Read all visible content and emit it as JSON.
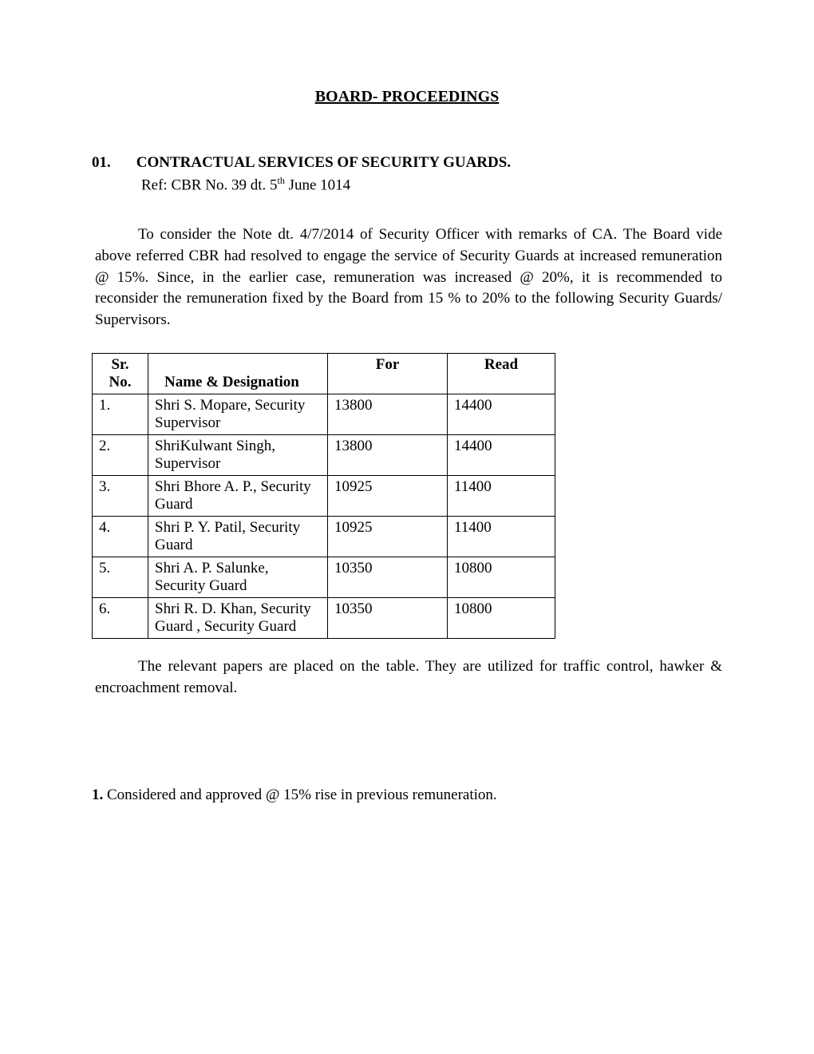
{
  "title": "BOARD- PROCEEDINGS",
  "section": {
    "number": "01.",
    "title": "CONTRACTUAL  SERVICES OF  SECURITY GUARDS.",
    "ref_prefix": "Ref: CBR No. 39 dt. 5",
    "ref_suffix": " June 1014",
    "ref_sup": "th"
  },
  "para1": "To consider  the Note dt. 4/7/2014 of Security Officer with remarks of CA.   The Board vide above referred CBR had resolved to engage the service of Security Guards at increased remuneration @ 15%.  Since, in the earlier case, remuneration was increased @ 20%, it is recommended to reconsider the remuneration fixed  by the Board from 15 % to 20% to the following Security Guards/ Supervisors.",
  "table": {
    "headers": {
      "sr_line1": "Sr.",
      "sr_line2": "No.",
      "name": "Name & Designation",
      "for": "For",
      "read": "Read"
    },
    "rows": [
      {
        "sr": "1.",
        "name": "Shri S. Mopare, Security Supervisor",
        "for": "13800",
        "read": "14400"
      },
      {
        "sr": "2.",
        "name": "ShriKulwant Singh, Supervisor",
        "for": "13800",
        "read": "14400"
      },
      {
        "sr": "3.",
        "name": "Shri Bhore A. P., Security Guard",
        "for": "10925",
        "read": "11400"
      },
      {
        "sr": "4.",
        "name": "Shri P. Y. Patil, Security Guard",
        "for": "10925",
        "read": "11400"
      },
      {
        "sr": "5.",
        "name": "Shri A. P. Salunke, Security Guard",
        "for": "10350",
        "read": "10800"
      },
      {
        "sr": "6.",
        "name": "Shri R. D. Khan, Security Guard  , Security Guard",
        "for": "10350",
        "read": "10800"
      }
    ]
  },
  "para2": "The relevant papers are placed on the table.  They are utilized for traffic control, hawker & encroachment removal.",
  "resolution": {
    "number": "1.",
    "text": " Considered and approved @ 15% rise in previous remuneration."
  }
}
